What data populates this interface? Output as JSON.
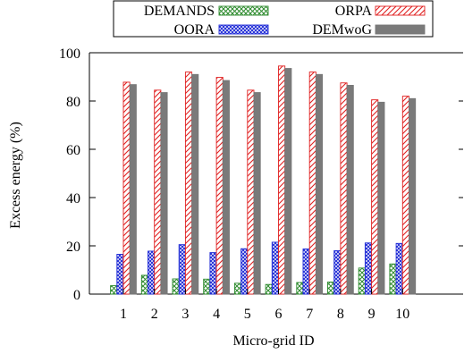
{
  "chart_data": {
    "type": "bar",
    "xlabel": "Micro-grid ID",
    "ylabel": "Excess energy (%)",
    "categories": [
      "1",
      "2",
      "3",
      "4",
      "5",
      "6",
      "7",
      "8",
      "9",
      "10"
    ],
    "ylim": [
      0,
      100
    ],
    "yticks": [
      "0",
      "20",
      "40",
      "60",
      "80",
      "100"
    ],
    "grid": false,
    "legend_position": "top",
    "series": [
      {
        "name": "DEMANDS",
        "pattern": "green-crosshatch",
        "color": "#2e8b2e",
        "values": [
          3.5,
          7.8,
          6.3,
          6.2,
          4.5,
          4.0,
          4.8,
          5.0,
          10.8,
          12.5
        ]
      },
      {
        "name": "OORA",
        "pattern": "blue-crosshatch",
        "color": "#1f2bd6",
        "values": [
          16.5,
          17.8,
          20.5,
          17.2,
          18.8,
          21.5,
          18.7,
          18.0,
          21.2,
          21.0
        ]
      },
      {
        "name": "ORPA",
        "pattern": "red-diagonal",
        "color": "#e02020",
        "values": [
          87.8,
          84.5,
          92.0,
          89.8,
          84.5,
          94.5,
          92.0,
          87.5,
          80.5,
          82.0
        ]
      },
      {
        "name": "DEMwoG",
        "pattern": "gray-solid",
        "color": "#777777",
        "values": [
          86.8,
          83.5,
          91.0,
          88.5,
          83.5,
          93.5,
          91.0,
          86.5,
          79.5,
          81.0
        ]
      }
    ]
  }
}
